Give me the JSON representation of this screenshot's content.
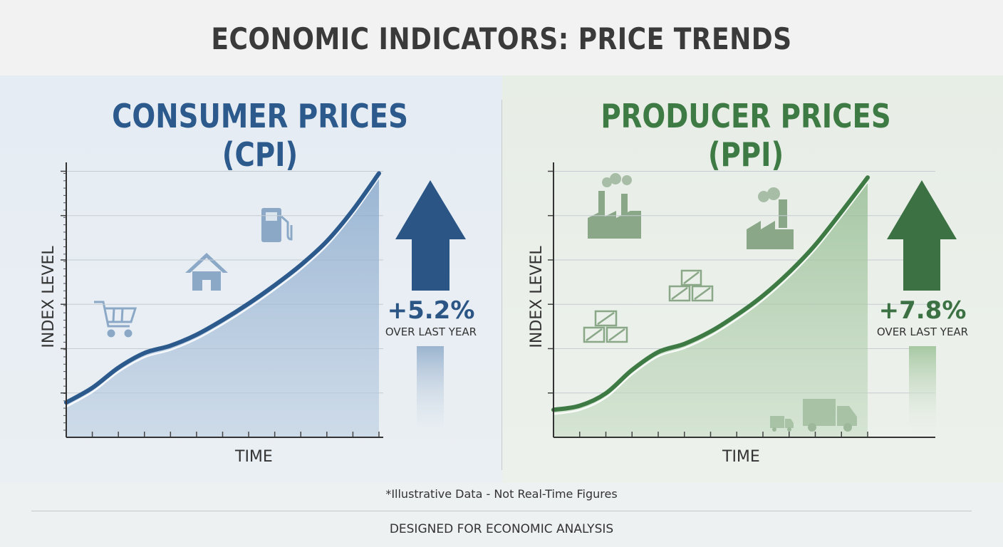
{
  "title": "ECONOMIC INDICATORS: PRICE TRENDS",
  "footnote": "*Illustrative Data - Not Real-Time Figures",
  "footer": "DESIGNED FOR ECONOMIC ANALYSIS",
  "colors": {
    "cpi": "#2c5a8c",
    "ppi": "#3e7a44"
  },
  "icons": {
    "cpi": [
      "shopping-cart-icon",
      "house-icon",
      "gas-pump-icon"
    ],
    "ppi": [
      "factory-icon",
      "factory-icon",
      "crates-icon",
      "crates-icon",
      "truck-icon"
    ]
  },
  "chart_data": [
    {
      "type": "area",
      "title": "CONSUMER PRICES (CPI)",
      "xlabel": "TIME",
      "ylabel": "INDEX LEVEL",
      "x": [
        0,
        1,
        2,
        3,
        4,
        5,
        6,
        7,
        8,
        9,
        10,
        11,
        12
      ],
      "series": [
        {
          "values": [
            0.9,
            1.7,
            2.8,
            3.6,
            4.0,
            4.6,
            5.4,
            6.3,
            7.3,
            8.4,
            9.7,
            11.4,
            13.4
          ]
        }
      ],
      "ylim": [
        -1,
        14
      ],
      "grid": true,
      "annotation": {
        "value": "+5.2%",
        "text": "OVER LAST YEAR",
        "direction": "up"
      }
    },
    {
      "type": "area",
      "title": "PRODUCER PRICES (PPI)",
      "xlabel": "TIME",
      "ylabel": "INDEX LEVEL",
      "x": [
        0,
        1,
        2,
        3,
        4,
        5,
        6,
        7,
        8,
        9,
        10,
        11,
        12
      ],
      "series": [
        {
          "values": [
            1.0,
            1.3,
            2.2,
            3.9,
            5.2,
            5.8,
            6.7,
            7.9,
            9.3,
            11.0,
            13.0,
            15.4,
            17.9
          ]
        }
      ],
      "ylim": [
        -1,
        19
      ],
      "grid": true,
      "annotation": {
        "value": "+7.8%",
        "text": "OVER LAST YEAR",
        "direction": "up"
      }
    }
  ]
}
